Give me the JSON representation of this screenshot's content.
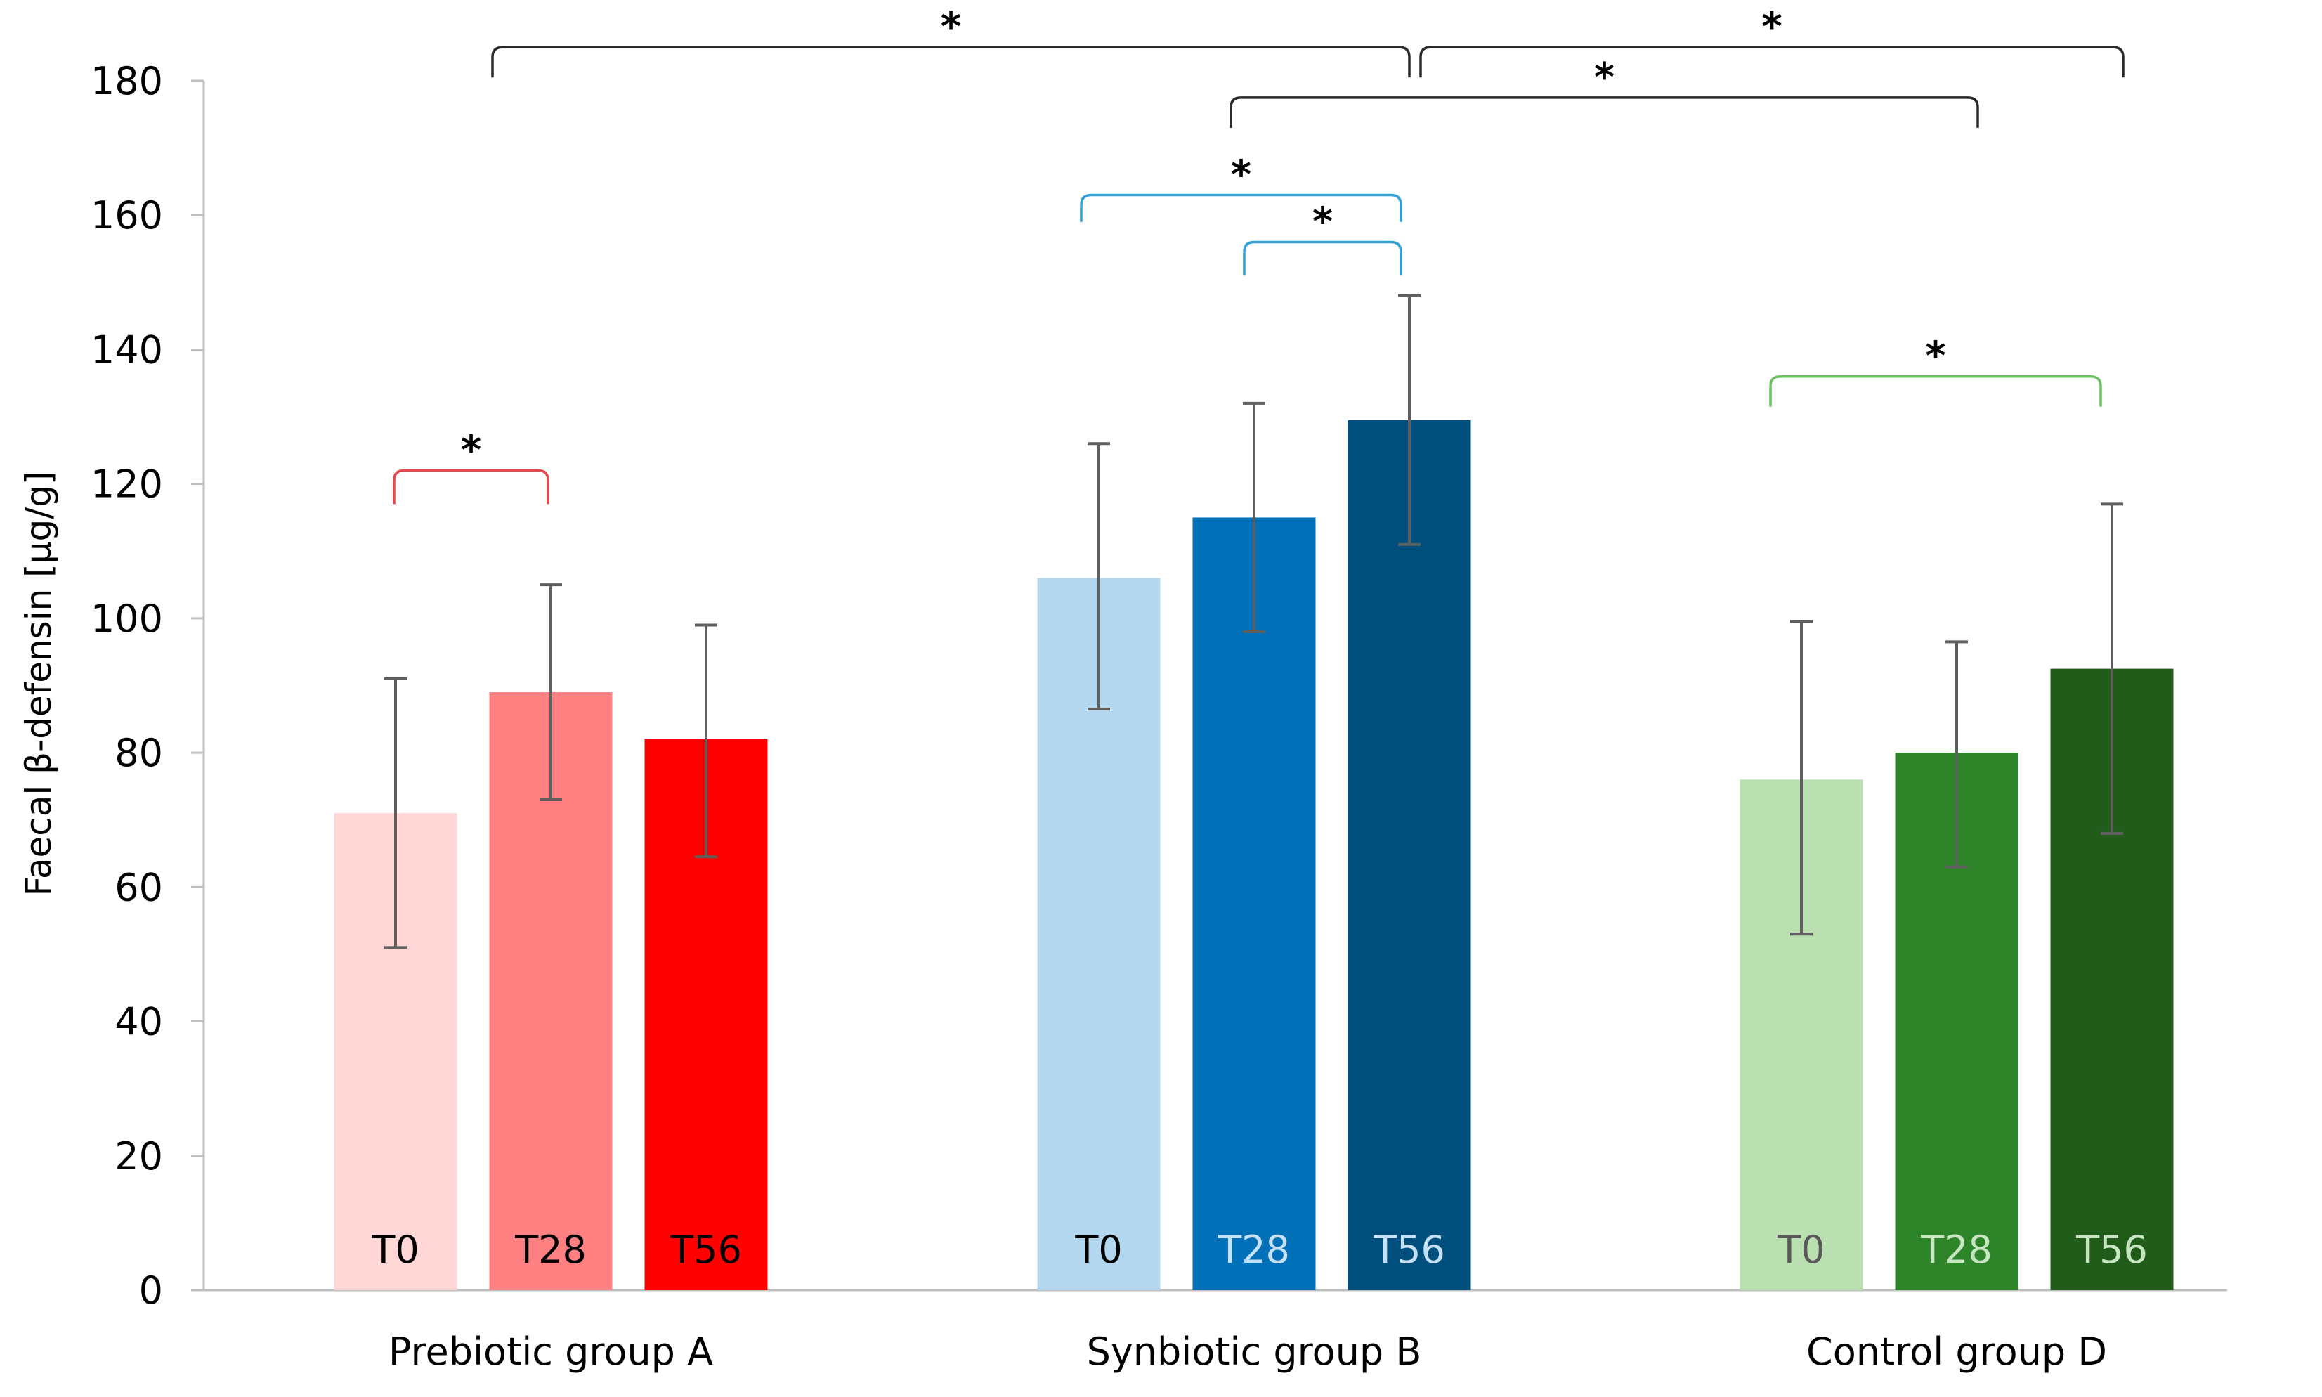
{
  "chart_data": {
    "type": "bar",
    "ylabel": "Faecal β-defensin [μg/g]",
    "ylim": [
      0,
      180
    ],
    "yticks": [
      0,
      20,
      40,
      60,
      80,
      100,
      120,
      140,
      160,
      180
    ],
    "grid": false,
    "categories": [
      "Prebiotic group A",
      "Synbiotic group B",
      "Control group D"
    ],
    "bar_labels": [
      "T0",
      "T28",
      "T56"
    ],
    "groups": [
      {
        "name": "Prebiotic group A",
        "bars": [
          {
            "label": "T0",
            "value": 71,
            "error_low": 51,
            "error_high": 91,
            "color": "#FFD7D7",
            "label_color": "#000000"
          },
          {
            "label": "T28",
            "value": 89,
            "error_low": 73,
            "error_high": 105,
            "color": "#FF8080",
            "label_color": "#000000"
          },
          {
            "label": "T56",
            "value": 82,
            "error_low": 64.5,
            "error_high": 99,
            "color": "#FF0000",
            "label_color": "#000000"
          }
        ]
      },
      {
        "name": "Synbiotic group B",
        "bars": [
          {
            "label": "T0",
            "value": 106,
            "error_low": 86.5,
            "error_high": 126,
            "color": "#B3D7EF",
            "label_color": "#000000"
          },
          {
            "label": "T28",
            "value": 115,
            "error_low": 98,
            "error_high": 132,
            "color": "#0070B8",
            "label_color": "#C6E0F5"
          },
          {
            "label": "T56",
            "value": 129.5,
            "error_low": 111,
            "error_high": 148,
            "color": "#004E7C",
            "label_color": "#C6E0F5"
          }
        ]
      },
      {
        "name": "Control group D",
        "bars": [
          {
            "label": "T0",
            "value": 76,
            "error_low": 53,
            "error_high": 99.5,
            "color": "#BAE0B2",
            "label_color": "#5A5A5A"
          },
          {
            "label": "T28",
            "value": 80,
            "error_low": 63,
            "error_high": 96.5,
            "color": "#2E8529",
            "label_color": "#C8E6C2"
          },
          {
            "label": "T56",
            "value": 92.5,
            "error_low": 68,
            "error_high": 117,
            "color": "#215C1B",
            "label_color": "#C8E6C2"
          }
        ]
      }
    ],
    "significance": [
      {
        "from_group": 0,
        "from_bar": 0,
        "to_group": 0,
        "to_bar": 1,
        "y": 122,
        "y_left_end": 117,
        "y_right_end": 117,
        "label": "*",
        "color": "#E8474D"
      },
      {
        "from_group": 1,
        "from_bar": 0,
        "to_group": 1,
        "to_bar": 2,
        "y": 163,
        "y_left_end": 159,
        "y_right_end": 159,
        "label": "*",
        "color": "#2FA2DA"
      },
      {
        "from_group": 1,
        "from_bar": 1,
        "to_group": 1,
        "to_bar": 2,
        "y": 156,
        "y_left_end": 151,
        "y_right_end": 151,
        "label": "*",
        "color": "#2FA2DA"
      },
      {
        "from_group": 2,
        "from_bar": 0,
        "to_group": 2,
        "to_bar": 2,
        "y": 136,
        "y_left_end": 131.5,
        "y_right_end": 131.5,
        "label": "*",
        "color": "#6CC261"
      },
      {
        "from_group": 1,
        "from_bar": 1,
        "to_group": 2,
        "to_bar": 1,
        "y": 177.5,
        "y_left_end": 173,
        "y_right_end": 173,
        "label": "*",
        "color": "#2B2B2B"
      },
      {
        "from_group": 0,
        "from_bar": 1,
        "to_group": 1,
        "to_bar": 2,
        "y": 185,
        "y_left_end": 180.5,
        "y_right_end": 180.5,
        "label": "*",
        "color": "#2B2B2B"
      },
      {
        "from_group": 1,
        "from_bar": 2,
        "to_group": 2,
        "to_bar": 2,
        "y": 185,
        "y_left_end": 180.5,
        "y_right_end": 180.5,
        "label": "*",
        "color": "#2B2B2B"
      }
    ]
  }
}
